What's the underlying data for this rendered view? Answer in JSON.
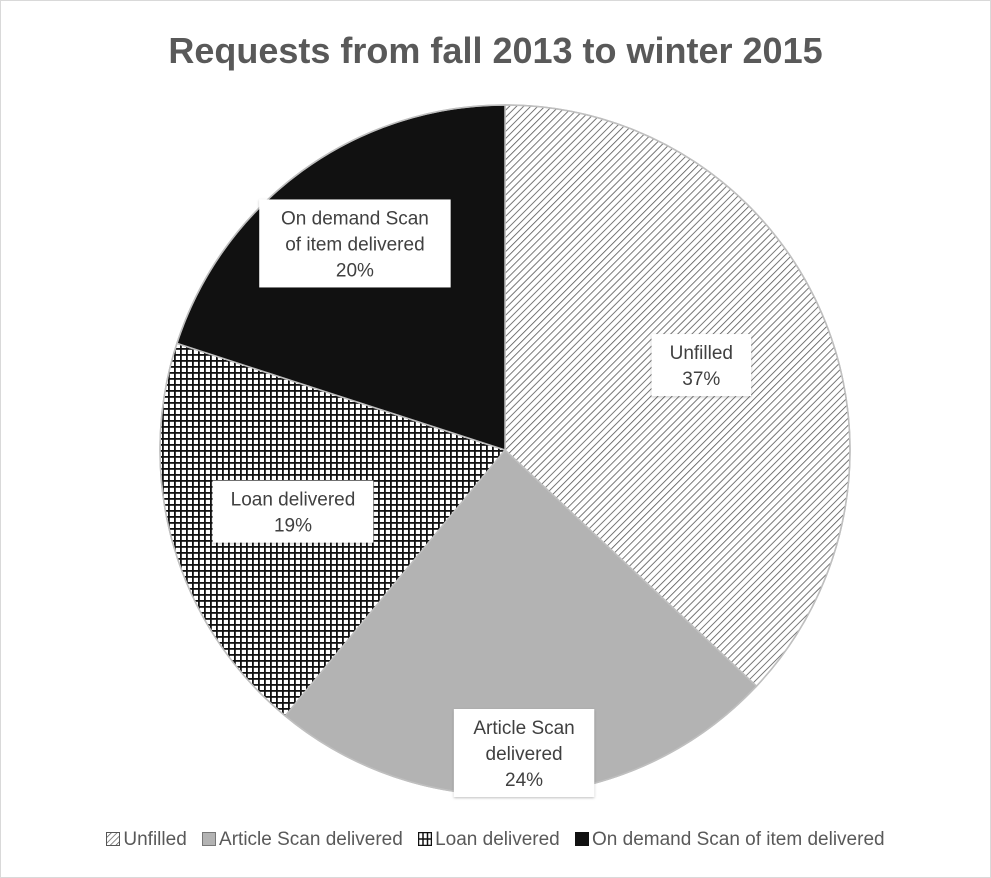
{
  "chart_data": {
    "type": "pie",
    "title": "Requests from fall 2013 to winter 2015",
    "slices": [
      {
        "label": "Unfilled",
        "value": 37,
        "value_label": "37%",
        "pattern": "diagonal-hatch",
        "color": "#ffffff"
      },
      {
        "label": "Article Scan delivered",
        "value": 24,
        "value_label": "24%",
        "pattern": "solid",
        "color": "#b3b3b3"
      },
      {
        "label": "Loan delivered",
        "value": 19,
        "value_label": "19%",
        "pattern": "grid",
        "color": "#ffffff"
      },
      {
        "label": "On demand Scan of item delivered",
        "value": 20,
        "value_label": "20%",
        "pattern": "solid",
        "color": "#111111"
      }
    ],
    "legend_position": "bottom",
    "data_label_lines": [
      [
        "Unfilled",
        "37%"
      ],
      [
        "Article Scan",
        "delivered",
        "24%"
      ],
      [
        "Loan delivered",
        "19%"
      ],
      [
        "On demand Scan",
        "of item delivered",
        "20%"
      ]
    ]
  }
}
